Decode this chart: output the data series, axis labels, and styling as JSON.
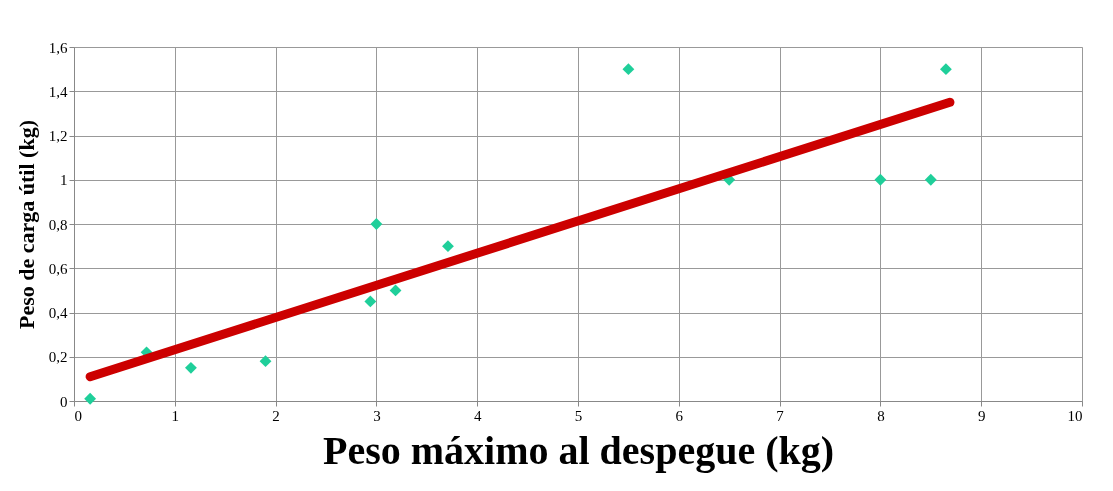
{
  "chart_data": {
    "type": "scatter",
    "xlabel": "Peso máximo al despegue (kg)",
    "ylabel": "Peso de carga útil (kg)",
    "xlim": [
      0,
      10
    ],
    "xticks": [
      0,
      1,
      2,
      3,
      4,
      5,
      6,
      7,
      8,
      9,
      10
    ],
    "ylim": [
      0,
      1.6
    ],
    "yticks": [
      {
        "value": 0,
        "label": "0"
      },
      {
        "value": 0.2,
        "label": "0,2"
      },
      {
        "value": 0.4,
        "label": "0,4"
      },
      {
        "value": 0.6,
        "label": "0,6"
      },
      {
        "value": 0.8,
        "label": "0,8"
      },
      {
        "value": 1,
        "label": "1"
      },
      {
        "value": 1.2,
        "label": "1,2"
      },
      {
        "value": 1.4,
        "label": "1,4"
      },
      {
        "value": 1.6,
        "label": "1,6"
      }
    ],
    "grid": true,
    "series": [
      {
        "marker": "diamond",
        "color": "#1fcf9a",
        "x": [
          0.16,
          0.72,
          1.16,
          1.9,
          2.94,
          3.0,
          3.19,
          3.71,
          5.5,
          6.5,
          8.0,
          8.5,
          8.65
        ],
        "values": [
          0.01,
          0.22,
          0.15,
          0.18,
          0.45,
          0.8,
          0.5,
          0.7,
          1.5,
          1.0,
          1.0,
          1.0,
          1.5
        ]
      },
      {
        "type": "line",
        "line_style": "solid",
        "color": "#cc0000",
        "x": [
          0.16,
          8.69
        ],
        "values": [
          0.11,
          1.35
        ]
      }
    ]
  }
}
